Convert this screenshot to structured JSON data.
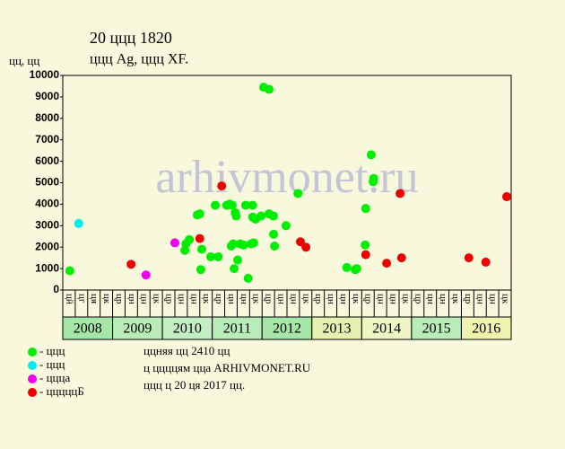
{
  "chart_data": {
    "type": "scatter",
    "title": "20 ццц 1820",
    "subtitle": "ццц Ag, ццц XF.",
    "y_label": "цц, цц",
    "watermark": "arhivmonet.ru",
    "xlim": [
      2008,
      2017
    ],
    "ylim": [
      0,
      10000
    ],
    "yticks": [
      0,
      1000,
      2000,
      3000,
      4000,
      5000,
      6000,
      7000,
      8000,
      9000,
      10000
    ],
    "columns": [
      "цй",
      "цг",
      "ця",
      "цк",
      "цр",
      "цн",
      "цн",
      "цк",
      "цр",
      "цн",
      "цн",
      "цк",
      "цр",
      "цн",
      "цн",
      "цк",
      "цр",
      "цн",
      "цн",
      "цк",
      "цр",
      "цн",
      "цн",
      "цк",
      "цр",
      "цн",
      "цн",
      "цк",
      "цр",
      "цн",
      "цн",
      "цк",
      "цр",
      "цн",
      "цн",
      "цк"
    ],
    "years": [
      {
        "label": "2008",
        "color": "#a6e6a6"
      },
      {
        "label": "2009",
        "color": "#b8edb8"
      },
      {
        "label": "2010",
        "color": "#c2eec2"
      },
      {
        "label": "2011",
        "color": "#b8edb8"
      },
      {
        "label": "2012",
        "color": "#a6e6a6"
      },
      {
        "label": "2013",
        "color": "#e6f0b0"
      },
      {
        "label": "2014",
        "color": "#eef4c4"
      },
      {
        "label": "2015",
        "color": "#b8edb8"
      },
      {
        "label": "2016",
        "color": "#eef4b0"
      }
    ],
    "series": [
      {
        "name": "- ццц",
        "color": "#00ee00",
        "x": [
          2008.14,
          2010.45,
          2010.47,
          2010.54,
          2010.7,
          2010.75,
          2010.77,
          2010.79,
          2010.97,
          2011.06,
          2011.12,
          2011.29,
          2011.35,
          2011.38,
          2011.4,
          2011.42,
          2011.44,
          2011.46,
          2011.48,
          2011.51,
          2011.56,
          2011.63,
          2011.67,
          2011.72,
          2011.78,
          2011.81,
          2011.81,
          2011.83,
          2011.87,
          2011.98,
          2012.03,
          2012.14,
          2012.14,
          2012.23,
          2012.23,
          2012.25,
          2012.48,
          2012.72,
          2013.7,
          2013.87,
          2013.9,
          2014.07,
          2014.08,
          2014.19,
          2014.23,
          2014.24
        ],
        "values": [
          900,
          1850,
          2150,
          2350,
          3500,
          3550,
          950,
          1900,
          1550,
          3950,
          1550,
          3950,
          4000,
          2050,
          3950,
          2150,
          1000,
          3600,
          3450,
          1400,
          2150,
          2100,
          3950,
          550,
          2150,
          3950,
          3400,
          2200,
          3300,
          3450,
          9450,
          9350,
          3550,
          3450,
          2600,
          2050,
          3000,
          4500,
          1050,
          950,
          1000,
          2100,
          3800,
          6300,
          5050,
          5200
        ]
      },
      {
        "name": "- ццц",
        "color": "#00eeee",
        "x": [
          2008.32
        ],
        "values": [
          3100
        ]
      },
      {
        "name": "- ццца",
        "color": "#ee00ee",
        "x": [
          2009.67,
          2010.25
        ],
        "values": [
          700,
          2200
        ]
      },
      {
        "name": "- цццццБ",
        "color": "#ee0000",
        "x": [
          2009.37,
          2010.75,
          2011.19,
          2012.77,
          2012.88,
          2014.08,
          2014.5,
          2014.77,
          2014.8,
          2016.15,
          2016.49,
          2016.91
        ],
        "values": [
          1200,
          2400,
          4850,
          2250,
          2000,
          1650,
          1250,
          4500,
          1500,
          1500,
          1300,
          4350
        ]
      }
    ],
    "notes": [
      "ццняя цц 2410 цц",
      "ц ццццям цца ARHIVMONET.RU",
      "ццц ц 20 ця 2017 цц."
    ]
  }
}
